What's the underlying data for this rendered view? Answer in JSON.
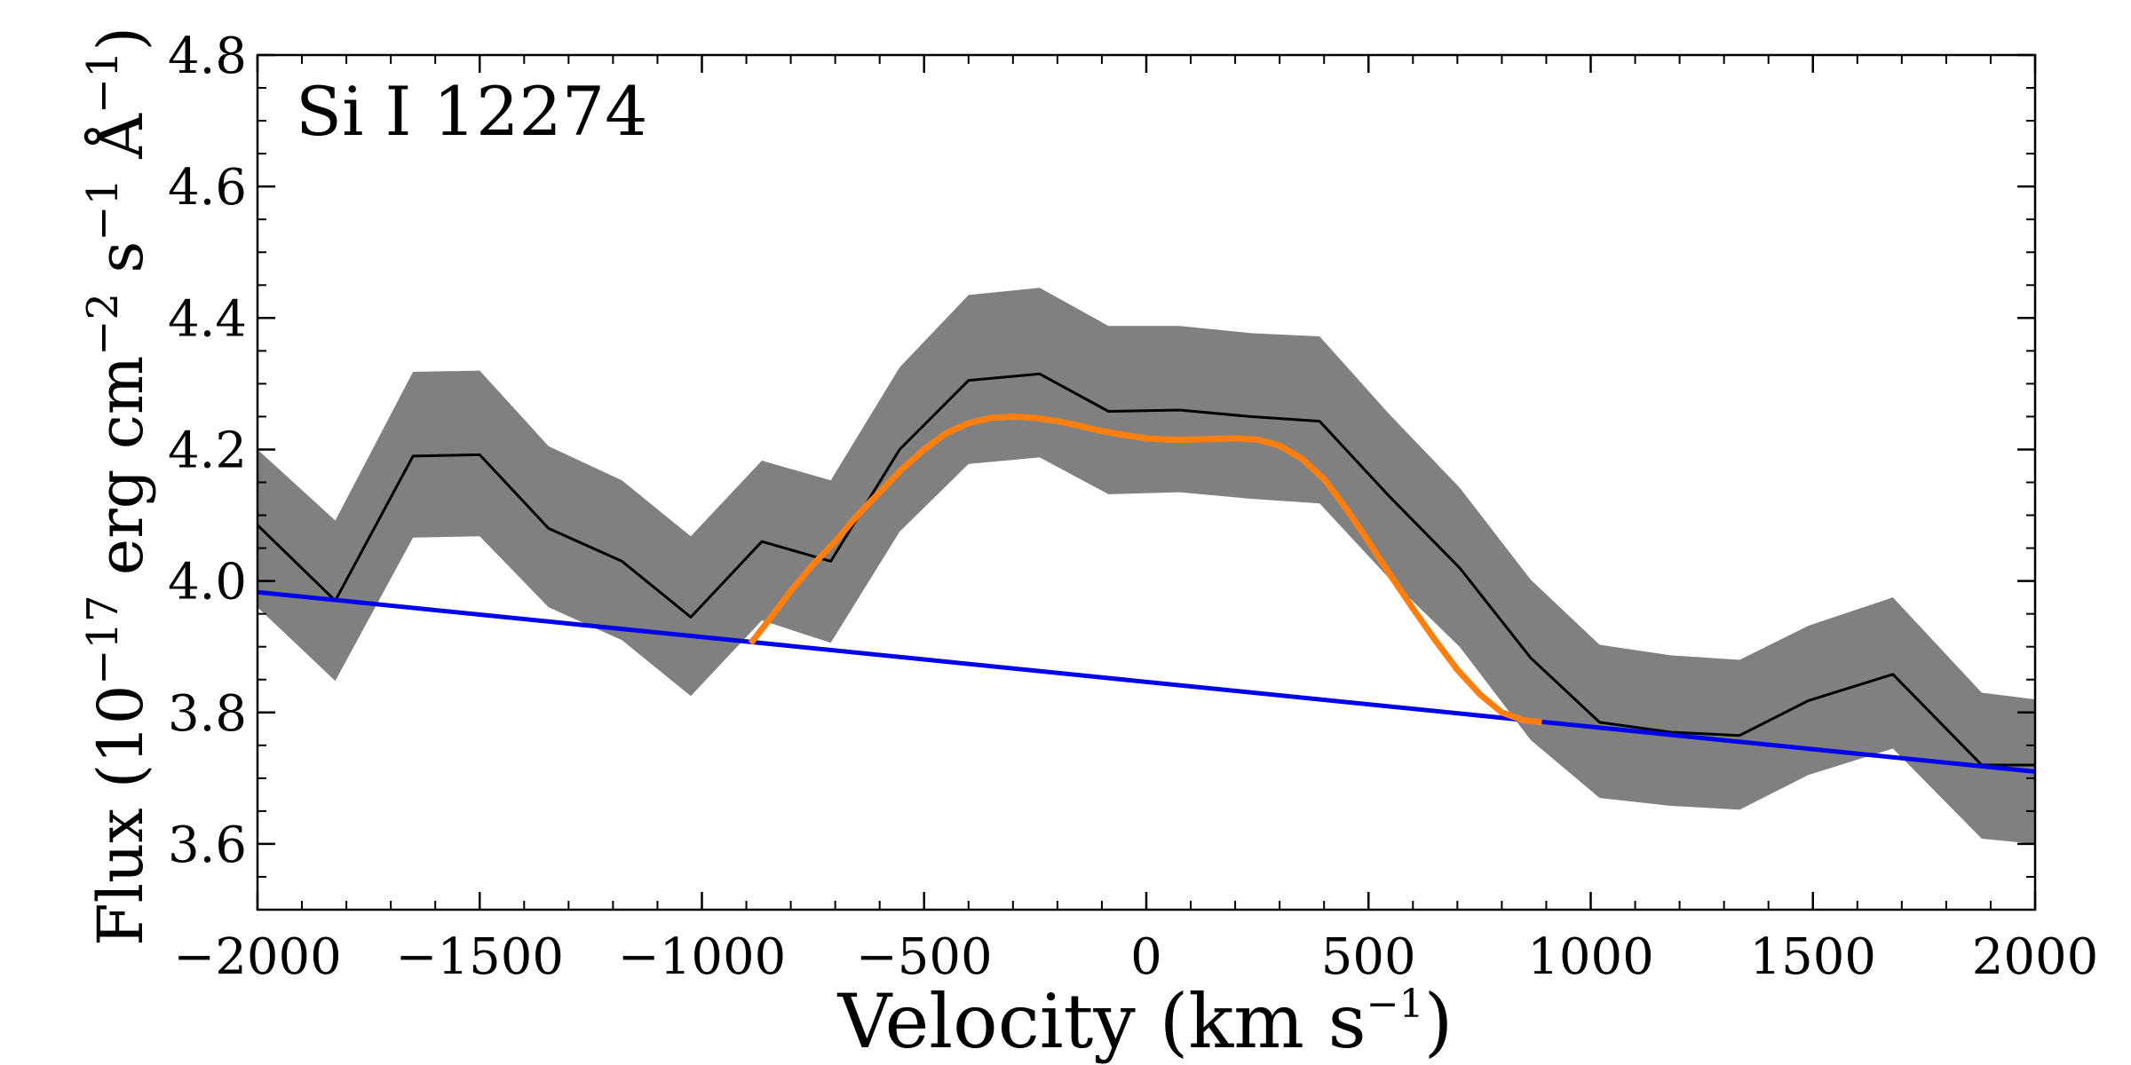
{
  "chart_data": {
    "type": "line",
    "annotation": "Si I 12274",
    "xlabel": {
      "main": "Velocity (km s",
      "exp": "−1",
      "close": ")"
    },
    "ylabel": {
      "p1": "Flux (10",
      "e1": "−17",
      "p2": " erg cm",
      "e2": "−2",
      "p3": " s",
      "e3": "−1",
      "p4": " Å",
      "e4": "−1",
      "p5": ")"
    },
    "xlim": [
      -2000,
      2000
    ],
    "ylim": [
      3.5,
      4.8
    ],
    "xticks": [
      -2000,
      -1500,
      -1000,
      -500,
      0,
      500,
      1000,
      1500,
      2000
    ],
    "xtick_labels": [
      "−2000",
      "−1500",
      "−1000",
      "−500",
      "0",
      "500",
      "1000",
      "1500",
      "2000"
    ],
    "yticks": [
      3.6,
      3.8,
      4.0,
      4.2,
      4.4,
      4.6,
      4.8
    ],
    "ytick_labels": [
      "3.6",
      "3.8",
      "4.0",
      "4.2",
      "4.4",
      "4.6",
      "4.8"
    ],
    "series": [
      {
        "name": "observed flux",
        "style": "line",
        "color": "#000000",
        "x": [
          -2000,
          -1825,
          -1650,
          -1500,
          -1345,
          -1180,
          -1025,
          -865,
          -710,
          -555,
          -400,
          -240,
          -85,
          75,
          235,
          390,
          545,
          705,
          865,
          1020,
          1180,
          1335,
          1490,
          1680,
          1880,
          2000
        ],
        "y": [
          4.085,
          3.97,
          4.19,
          4.192,
          4.08,
          4.03,
          3.945,
          4.06,
          4.03,
          4.2,
          4.305,
          4.315,
          4.258,
          4.26,
          4.25,
          4.243,
          4.13,
          4.02,
          3.883,
          3.785,
          3.77,
          3.765,
          3.818,
          3.858,
          3.72,
          3.72
        ]
      },
      {
        "name": "uncertainty band",
        "style": "band",
        "color": "#808080",
        "x": [
          -2000,
          -1825,
          -1650,
          -1500,
          -1345,
          -1180,
          -1025,
          -865,
          -710,
          -555,
          -400,
          -240,
          -85,
          75,
          235,
          390,
          545,
          705,
          865,
          1020,
          1180,
          1335,
          1490,
          1680,
          1880,
          2000
        ],
        "lower": [
          3.96,
          3.848,
          4.066,
          4.068,
          3.96,
          3.91,
          3.825,
          3.94,
          3.906,
          4.075,
          4.178,
          4.188,
          4.132,
          4.135,
          4.125,
          4.118,
          4.005,
          3.9,
          3.758,
          3.67,
          3.658,
          3.652,
          3.705,
          3.745,
          3.608,
          3.6
        ],
        "upper": [
          4.2,
          4.092,
          4.318,
          4.32,
          4.205,
          4.153,
          4.068,
          4.183,
          4.153,
          4.325,
          4.435,
          4.446,
          4.388,
          4.388,
          4.377,
          4.372,
          4.255,
          4.142,
          4.002,
          3.903,
          3.887,
          3.88,
          3.932,
          3.975,
          3.83,
          3.82
        ]
      },
      {
        "name": "continuum fit",
        "style": "line",
        "color": "#0000ee",
        "x": [
          -2000,
          2000
        ],
        "y": [
          3.983,
          3.71
        ]
      },
      {
        "name": "line profile fit",
        "style": "curve",
        "color": "#ff7f0e",
        "x": [
          -890,
          -850,
          -800,
          -750,
          -700,
          -650,
          -600,
          -550,
          -500,
          -450,
          -400,
          -350,
          -300,
          -250,
          -200,
          -150,
          -100,
          -50,
          0,
          50,
          100,
          150,
          200,
          250,
          300,
          350,
          400,
          450,
          500,
          550,
          600,
          650,
          700,
          750,
          800,
          850,
          890
        ],
        "y": [
          3.905,
          3.94,
          3.985,
          4.025,
          4.06,
          4.1,
          4.135,
          4.17,
          4.2,
          4.225,
          4.24,
          4.248,
          4.25,
          4.248,
          4.243,
          4.236,
          4.228,
          4.222,
          4.217,
          4.215,
          4.215,
          4.216,
          4.217,
          4.215,
          4.206,
          4.186,
          4.155,
          4.11,
          4.06,
          4.008,
          3.958,
          3.91,
          3.865,
          3.828,
          3.8,
          3.788,
          3.785
        ]
      }
    ]
  }
}
